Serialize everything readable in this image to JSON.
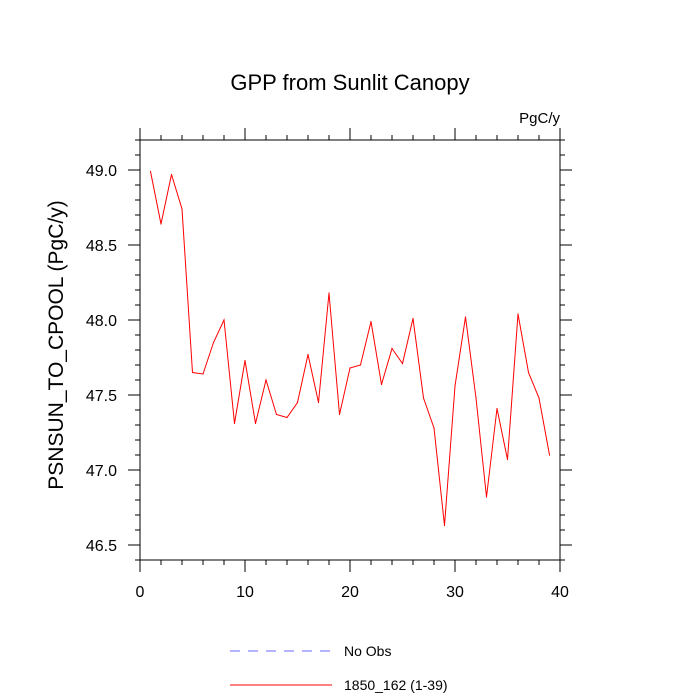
{
  "chart_data": {
    "type": "line",
    "title": "GPP from Sunlit Canopy",
    "units_label": "PgC/y",
    "xlabel": "",
    "ylabel": "PSNSUN_TO_CPOOL  (PgC/y)",
    "xlim": [
      0,
      40
    ],
    "ylim": [
      46.4,
      49.2
    ],
    "x_ticks": [
      0,
      10,
      20,
      30,
      40
    ],
    "x_tick_labels": [
      "0",
      "10",
      "20",
      "30",
      "40"
    ],
    "y_ticks": [
      46.5,
      47.0,
      47.5,
      48.0,
      48.5,
      49.0
    ],
    "y_tick_labels": [
      "46.5",
      "47.0",
      "47.5",
      "48.0",
      "48.5",
      "49.0"
    ],
    "grid": false,
    "legend_position": "bottom",
    "series": [
      {
        "name": "No Obs",
        "color": "#6a6aff",
        "dash": "dashed",
        "x": [],
        "values": []
      },
      {
        "name": "1850_162 (1-39)",
        "color": "#ff0000",
        "dash": "solid",
        "x": [
          1,
          2,
          3,
          4,
          5,
          6,
          7,
          8,
          9,
          10,
          11,
          12,
          13,
          14,
          15,
          16,
          17,
          18,
          19,
          20,
          21,
          22,
          23,
          24,
          25,
          26,
          27,
          28,
          29,
          30,
          31,
          32,
          33,
          34,
          35,
          36,
          37,
          38,
          39
        ],
        "values": [
          48.99,
          48.64,
          48.97,
          48.74,
          47.65,
          47.64,
          47.85,
          48.0,
          47.31,
          47.73,
          47.31,
          47.6,
          47.37,
          47.35,
          47.45,
          47.77,
          47.45,
          48.18,
          47.37,
          47.68,
          47.7,
          47.99,
          47.57,
          47.81,
          47.71,
          48.01,
          47.48,
          47.28,
          46.63,
          47.56,
          48.02,
          47.48,
          46.82,
          47.41,
          47.07,
          48.04,
          47.65,
          47.48,
          47.1
        ]
      }
    ]
  }
}
